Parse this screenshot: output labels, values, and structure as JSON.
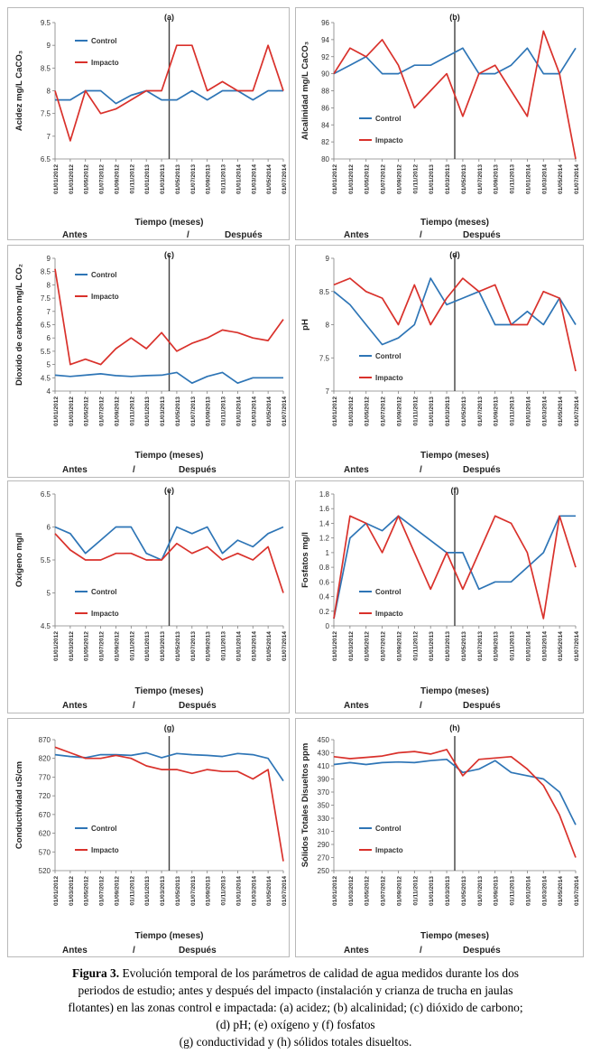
{
  "x_ticks": [
    "01/01/2012",
    "01/03/2012",
    "01/05/2012",
    "01/07/2012",
    "01/09/2012",
    "01/11/2012",
    "01/01/2013",
    "01/03/2013",
    "01/05/2013",
    "01/07/2013",
    "01/09/2013",
    "01/11/2013",
    "01/01/2014",
    "01/03/2014",
    "01/05/2014",
    "01/07/2014"
  ],
  "labels": {
    "control": "Control",
    "impacto": "Impacto",
    "time": "Tiempo (meses)",
    "antes": "Antes",
    "slash": "/",
    "despues": "Después"
  },
  "colors": {
    "control": "#2e75b6",
    "impacto": "#d9312b"
  },
  "caption": {
    "figure_label": "Figura 3.",
    "line1": " Evolución temporal de los parámetros de calidad de agua medidos durante los dos",
    "line2": "periodos de estudio; antes y después del impacto (instalación y crianza de trucha en jaulas",
    "line3": "flotantes) en las zonas control e impactada: (a) acidez; (b) alcalinidad; (c) dióxido de carbono;",
    "line4": "(d) pH; (e) oxígeno y (f) fosfatos",
    "line5": "(g) conductividad y (h) sólidos totales disueltos."
  },
  "chart_data": [
    {
      "id": "a",
      "type": "line",
      "letter": "(a)",
      "ylabel": "Acidez mg/L CaCO₃",
      "xlabel": "Tiempo (meses)",
      "ylim": [
        6.5,
        9.5
      ],
      "yticks": [
        6.5,
        7,
        7.5,
        8,
        8.5,
        9,
        9.5
      ],
      "ytick_labels": [
        "6.5",
        "7",
        "7.5",
        "8",
        "8.5",
        "9",
        "9.5"
      ],
      "legend_position": "top-left",
      "impact_at": "01/03/2013",
      "series": [
        {
          "name": "Control",
          "values": [
            7.8,
            7.8,
            8.0,
            8.0,
            7.72,
            7.9,
            8.0,
            7.8,
            7.8,
            8.0,
            7.8,
            8.0,
            8.0,
            7.8,
            8.0,
            8.0
          ]
        },
        {
          "name": "Impacto",
          "values": [
            8.0,
            6.9,
            8.0,
            7.5,
            7.6,
            7.8,
            8.0,
            8.0,
            9.0,
            9.0,
            8.0,
            8.2,
            8.0,
            8.0,
            9.0,
            8.0
          ]
        }
      ]
    },
    {
      "id": "b",
      "type": "line",
      "letter": "(b)",
      "ylabel": "Alcalinidad mg/L CaCO₃",
      "xlabel": "Tiempo (meses)",
      "ylim": [
        80,
        96
      ],
      "yticks": [
        80,
        82,
        84,
        86,
        88,
        90,
        92,
        94,
        96
      ],
      "ytick_labels": [
        "80",
        "82",
        "84",
        "86",
        "88",
        "90",
        "92",
        "94",
        "96"
      ],
      "legend_position": "center-left",
      "impact_at": "01/03/2013",
      "series": [
        {
          "name": "Control",
          "values": [
            90,
            91,
            92,
            90,
            90,
            91,
            91,
            92,
            93,
            90,
            90,
            91,
            93,
            90,
            90,
            93
          ]
        },
        {
          "name": "Impacto",
          "values": [
            90,
            93,
            92,
            94,
            91,
            86,
            88,
            90,
            85,
            90,
            91,
            88,
            85,
            95,
            90,
            80
          ]
        }
      ]
    },
    {
      "id": "c",
      "type": "line",
      "letter": "(c)",
      "ylabel": "Dioxido de carbono mg/L CO₂",
      "xlabel": "Tiempo (meses)",
      "ylim": [
        4,
        9
      ],
      "yticks": [
        4,
        4.5,
        5,
        5.5,
        6,
        6.5,
        7,
        7.5,
        8,
        8.5,
        9
      ],
      "ytick_labels": [
        "4",
        "4.5",
        "5",
        "5.5",
        "6",
        "6.5",
        "7",
        "7.5",
        "8",
        "8.5",
        "9"
      ],
      "legend_position": "top-left",
      "impact_at": "01/03/2013",
      "series": [
        {
          "name": "Control",
          "values": [
            4.6,
            4.55,
            4.6,
            4.65,
            4.58,
            4.55,
            4.58,
            4.6,
            4.7,
            4.3,
            4.55,
            4.7,
            4.3,
            4.5,
            4.5,
            4.5
          ]
        },
        {
          "name": "Impacto",
          "values": [
            8.6,
            5.0,
            5.2,
            5.0,
            5.6,
            6.0,
            5.6,
            6.2,
            5.5,
            5.8,
            6.0,
            6.3,
            6.2,
            6.0,
            5.9,
            6.7
          ]
        }
      ]
    },
    {
      "id": "d",
      "type": "line",
      "letter": "(d)",
      "ylabel": "pH",
      "xlabel": "Tiempo (meses)",
      "ylim": [
        7,
        9
      ],
      "yticks": [
        7,
        7.5,
        8,
        8.5,
        9
      ],
      "ytick_labels": [
        "7",
        "7.5",
        "8",
        "8.5",
        "9"
      ],
      "legend_position": "bottom-left",
      "impact_at": "01/03/2013",
      "series": [
        {
          "name": "Control",
          "values": [
            8.5,
            8.3,
            8.0,
            7.7,
            7.8,
            8.0,
            8.7,
            8.3,
            8.4,
            8.5,
            8.0,
            8.0,
            8.2,
            8.0,
            8.4,
            8.0
          ]
        },
        {
          "name": "Impacto",
          "values": [
            8.6,
            8.7,
            8.5,
            8.4,
            8.0,
            8.6,
            8.0,
            8.4,
            8.7,
            8.5,
            8.6,
            8.0,
            8.0,
            8.5,
            8.4,
            7.3
          ]
        }
      ]
    },
    {
      "id": "e",
      "type": "line",
      "letter": "(e)",
      "ylabel": "Oxígeno mg/l",
      "xlabel": "Tiempo (meses)",
      "ylim": [
        4.5,
        6.5
      ],
      "yticks": [
        4.5,
        5,
        5.5,
        6,
        6.5
      ],
      "ytick_labels": [
        "4.5",
        "5",
        "5.5",
        "6",
        "6.5"
      ],
      "legend_position": "bottom-left",
      "impact_at": "01/03/2013",
      "series": [
        {
          "name": "Control",
          "values": [
            6.0,
            5.9,
            5.6,
            5.8,
            6.0,
            6.0,
            5.6,
            5.5,
            6.0,
            5.9,
            6.0,
            5.6,
            5.8,
            5.7,
            5.9,
            6.0
          ]
        },
        {
          "name": "Impacto",
          "values": [
            5.9,
            5.65,
            5.5,
            5.5,
            5.6,
            5.6,
            5.5,
            5.5,
            5.75,
            5.6,
            5.7,
            5.5,
            5.6,
            5.5,
            5.7,
            5.0
          ]
        }
      ]
    },
    {
      "id": "f",
      "type": "line",
      "letter": "(f)",
      "ylabel": "Fosfatos mg/l",
      "xlabel": "Tiempo (meses)",
      "ylim": [
        0,
        1.8
      ],
      "yticks": [
        0,
        0.2,
        0.4,
        0.6,
        0.8,
        1,
        1.2,
        1.4,
        1.6,
        1.8
      ],
      "ytick_labels": [
        "0",
        "0.2",
        "0.4",
        "0.6",
        "0.8",
        "1",
        "1.2",
        "1.4",
        "1.6",
        "1.8"
      ],
      "legend_position": "bottom-left",
      "impact_at": "01/03/2013",
      "series": [
        {
          "name": "Control",
          "values": [
            0.1,
            1.2,
            1.4,
            1.3,
            1.5,
            null,
            null,
            1.0,
            1.0,
            0.5,
            0.6,
            0.6,
            0.8,
            1.0,
            1.5,
            1.5
          ]
        },
        {
          "name": "Impacto",
          "values": [
            0.1,
            1.5,
            1.4,
            1.0,
            1.5,
            1.0,
            0.5,
            1.0,
            0.5,
            1.0,
            1.5,
            1.4,
            1.0,
            0.1,
            1.5,
            0.8
          ]
        }
      ]
    },
    {
      "id": "g",
      "type": "line",
      "letter": "(g)",
      "ylabel": "Conductividad uS/cm",
      "xlabel": "Tiempo (meses)",
      "ylim": [
        520,
        870
      ],
      "yticks": [
        520,
        570,
        620,
        670,
        720,
        770,
        820,
        870
      ],
      "ytick_labels": [
        "520",
        "570",
        "620",
        "670",
        "720",
        "770",
        "820",
        "870"
      ],
      "legend_position": "bottom-left",
      "impact_at": "01/03/2013",
      "series": [
        {
          "name": "Control",
          "values": [
            830,
            825,
            822,
            830,
            830,
            828,
            835,
            822,
            833,
            830,
            828,
            825,
            833,
            830,
            820,
            760
          ]
        },
        {
          "name": "Impacto",
          "values": [
            850,
            835,
            820,
            820,
            828,
            820,
            800,
            790,
            790,
            780,
            790,
            785,
            785,
            765,
            790,
            545
          ]
        }
      ]
    },
    {
      "id": "h",
      "type": "line",
      "letter": "(h)",
      "ylabel": "Sólidos Totales Disueltos ppm",
      "xlabel": "Tiempo (meses)",
      "ylim": [
        250,
        450
      ],
      "yticks": [
        250,
        270,
        290,
        310,
        330,
        350,
        370,
        390,
        410,
        430,
        450
      ],
      "ytick_labels": [
        "250",
        "270",
        "290",
        "310",
        "330",
        "350",
        "370",
        "390",
        "410",
        "430",
        "450"
      ],
      "legend_position": "bottom-left",
      "impact_at": "01/03/2013",
      "series": [
        {
          "name": "Control",
          "values": [
            412,
            415,
            412,
            415,
            416,
            415,
            418,
            420,
            400,
            405,
            418,
            400,
            395,
            390,
            370,
            320
          ]
        },
        {
          "name": "Impacto",
          "values": [
            424,
            421,
            423,
            425,
            430,
            432,
            428,
            435,
            395,
            420,
            422,
            424,
            405,
            380,
            335,
            270
          ]
        }
      ]
    }
  ]
}
